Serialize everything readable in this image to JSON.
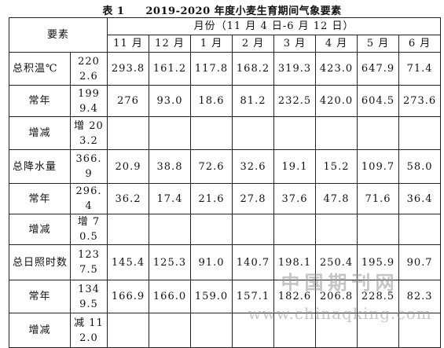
{
  "title": "表 1　　2019-2020 年度小麦生育期间气象要素",
  "table": {
    "header": {
      "item": "要素",
      "period": "月份（11 月 4 日-6 月 12 日）",
      "months": [
        "11 月",
        "12 月",
        "1 月",
        "2 月",
        "3 月",
        "4 月",
        "5 月",
        "6 月"
      ]
    },
    "rows": [
      {
        "label": "总积温℃",
        "values": [
          "2202.6",
          "293.8",
          "161.2",
          "117.8",
          "168.2",
          "319.3",
          "423.0",
          "647.9",
          "71.4"
        ]
      },
      {
        "label": "常年",
        "values": [
          "1999.4",
          "276",
          "93.0",
          "18.6",
          "81.2",
          "232.5",
          "420.0",
          "604.5",
          "273.6"
        ]
      },
      {
        "label": "增减",
        "values": [
          "增 203.2"
        ]
      },
      {
        "label": "总降水量",
        "values": [
          "366.9",
          "20.9",
          "38.8",
          "72.6",
          "32.6",
          "19.1",
          "15.2",
          "109.7",
          "58.0"
        ]
      },
      {
        "label": "常年",
        "values": [
          "296.4",
          "36.2",
          "17.4",
          "21.6",
          "27.8",
          "37.6",
          "47.8",
          "71.6",
          "36.4"
        ]
      },
      {
        "label": "增减",
        "values": [
          "增 70.5"
        ]
      },
      {
        "label": "总日照时数",
        "values": [
          "1237.5",
          "145.4",
          "125.3",
          "91.0",
          "140.7",
          "198.1",
          "250.4",
          "195.9",
          "90.7"
        ]
      },
      {
        "label": "常年",
        "values": [
          "1349.5",
          "166.9",
          "166.0",
          "159.0",
          "157.1",
          "182.6",
          "206.8",
          "228.5",
          "82.3"
        ]
      },
      {
        "label": "增减",
        "values": [
          "减 112.0"
        ]
      }
    ]
  },
  "watermark": [
    "中国期刊网",
    "www.chinaqking.com"
  ]
}
